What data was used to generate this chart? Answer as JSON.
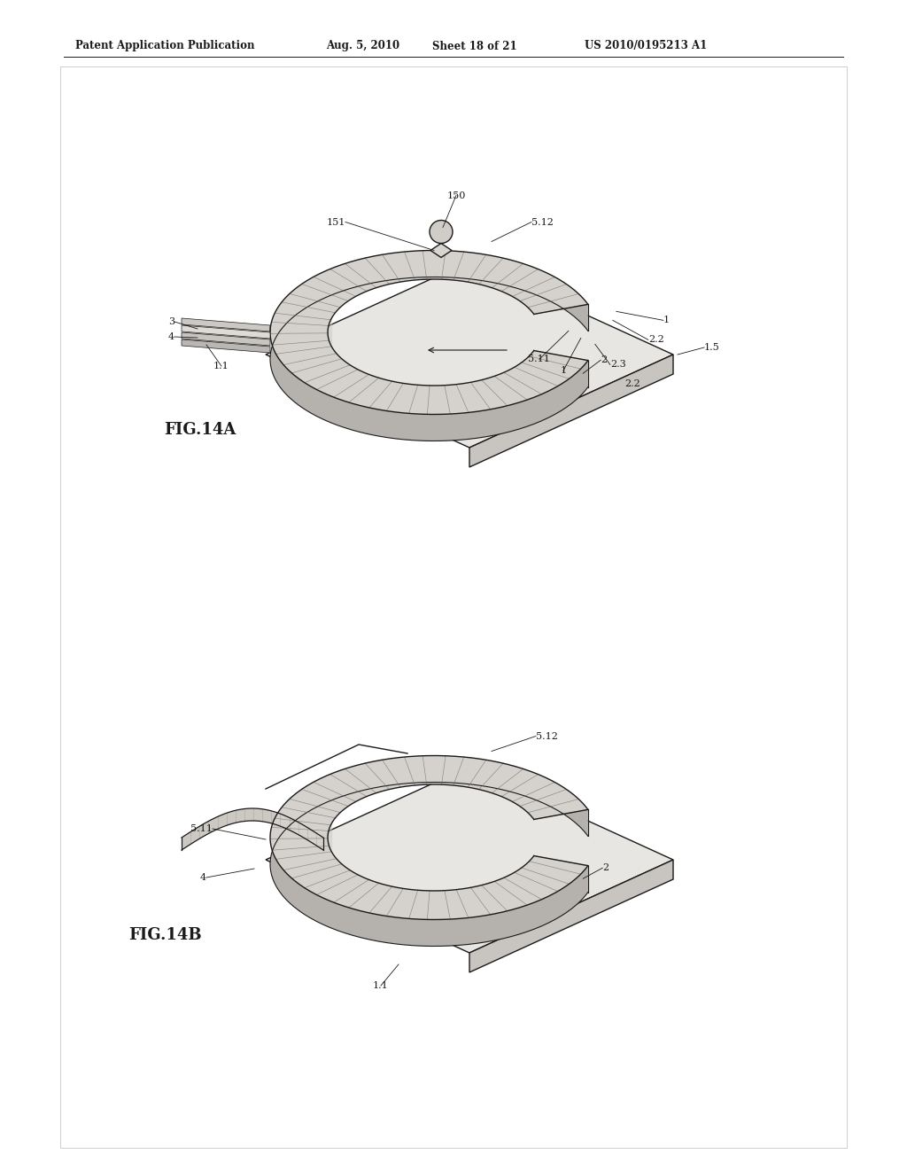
{
  "bg_color": "#ffffff",
  "header_text": "Patent Application Publication",
  "header_date": "Aug. 5, 2010",
  "header_sheet": "Sheet 18 of 21",
  "header_patent": "US 2010/0195213 A1",
  "fig_a_label": "FIG.14A",
  "fig_b_label": "FIG.14B",
  "line_color": "#1a1a1a",
  "fill_plate": "#e8e6e2",
  "fill_plate_side": "#c8c5c0",
  "fill_arc": "#d5d2cd",
  "fill_arc_side": "#b5b2ad",
  "hatch_color": "#666666",
  "note_color": "#888888"
}
